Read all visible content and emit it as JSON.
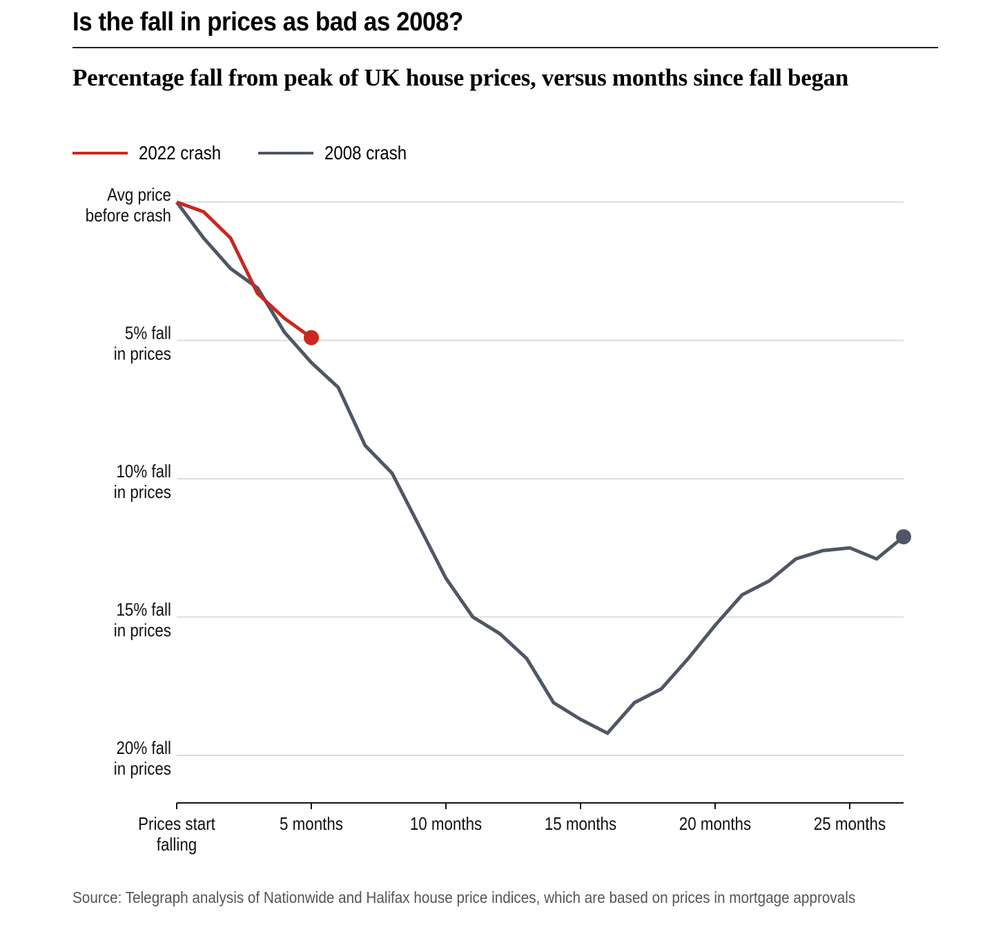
{
  "header": {
    "title": "Is the fall in prices as bad as 2008?",
    "subtitle": "Percentage fall from peak of UK house prices, versus months since fall began"
  },
  "legend": [
    {
      "label": "2022 crash",
      "color": "#c8281f"
    },
    {
      "label": "2008 crash",
      "color": "#4f5766"
    }
  ],
  "footer": {
    "source": "Source: Telegraph analysis of Nationwide and Halifax house price indices, which are based on prices in mortgage approvals"
  },
  "chart_data": {
    "type": "line",
    "title": "Is the fall in prices as bad as 2008?",
    "subtitle": "Percentage fall from peak of UK house prices, versus months since fall began",
    "xlabel": "Months since fall began",
    "ylabel": "Percentage fall from peak",
    "xlim": [
      0,
      27
    ],
    "ylim": [
      0,
      21.5
    ],
    "y_inverted": true,
    "grid": true,
    "legend_position": "top-left",
    "x_ticks": [
      {
        "value": 0,
        "label": [
          "Prices start",
          "falling"
        ]
      },
      {
        "value": 5,
        "label": [
          "5 months"
        ]
      },
      {
        "value": 10,
        "label": [
          "10 months"
        ]
      },
      {
        "value": 15,
        "label": [
          "15 months"
        ]
      },
      {
        "value": 20,
        "label": [
          "20 months"
        ]
      },
      {
        "value": 25,
        "label": [
          "25 months"
        ]
      }
    ],
    "y_ticks": [
      {
        "value": 0,
        "label": [
          "Avg price",
          "before crash"
        ]
      },
      {
        "value": 5,
        "label": [
          "5% fall",
          "in prices"
        ]
      },
      {
        "value": 10,
        "label": [
          "10% fall",
          "in prices"
        ]
      },
      {
        "value": 15,
        "label": [
          "15% fall",
          "in prices"
        ]
      },
      {
        "value": 20,
        "label": [
          "20% fall",
          "in prices"
        ]
      }
    ],
    "series": [
      {
        "name": "2008 crash",
        "color": "#4f5766",
        "x": [
          0,
          1,
          2,
          3,
          4,
          5,
          6,
          7,
          8,
          9,
          10,
          11,
          12,
          13,
          14,
          15,
          16,
          17,
          18,
          19,
          20,
          21,
          22,
          23,
          24,
          25,
          26,
          27
        ],
        "values": [
          0,
          1.3,
          2.4,
          3.1,
          4.7,
          5.8,
          6.7,
          8.8,
          9.8,
          11.7,
          13.6,
          15.0,
          15.6,
          16.5,
          18.1,
          18.7,
          19.2,
          18.1,
          17.6,
          16.5,
          15.3,
          14.2,
          13.7,
          12.9,
          12.6,
          12.5,
          12.9,
          12.1
        ],
        "end_marker": true
      },
      {
        "name": "2022 crash",
        "color": "#c8281f",
        "x": [
          0,
          1,
          2,
          3,
          4,
          5
        ],
        "values": [
          0,
          0.35,
          1.3,
          3.3,
          4.2,
          4.9
        ],
        "end_marker": true
      }
    ]
  }
}
